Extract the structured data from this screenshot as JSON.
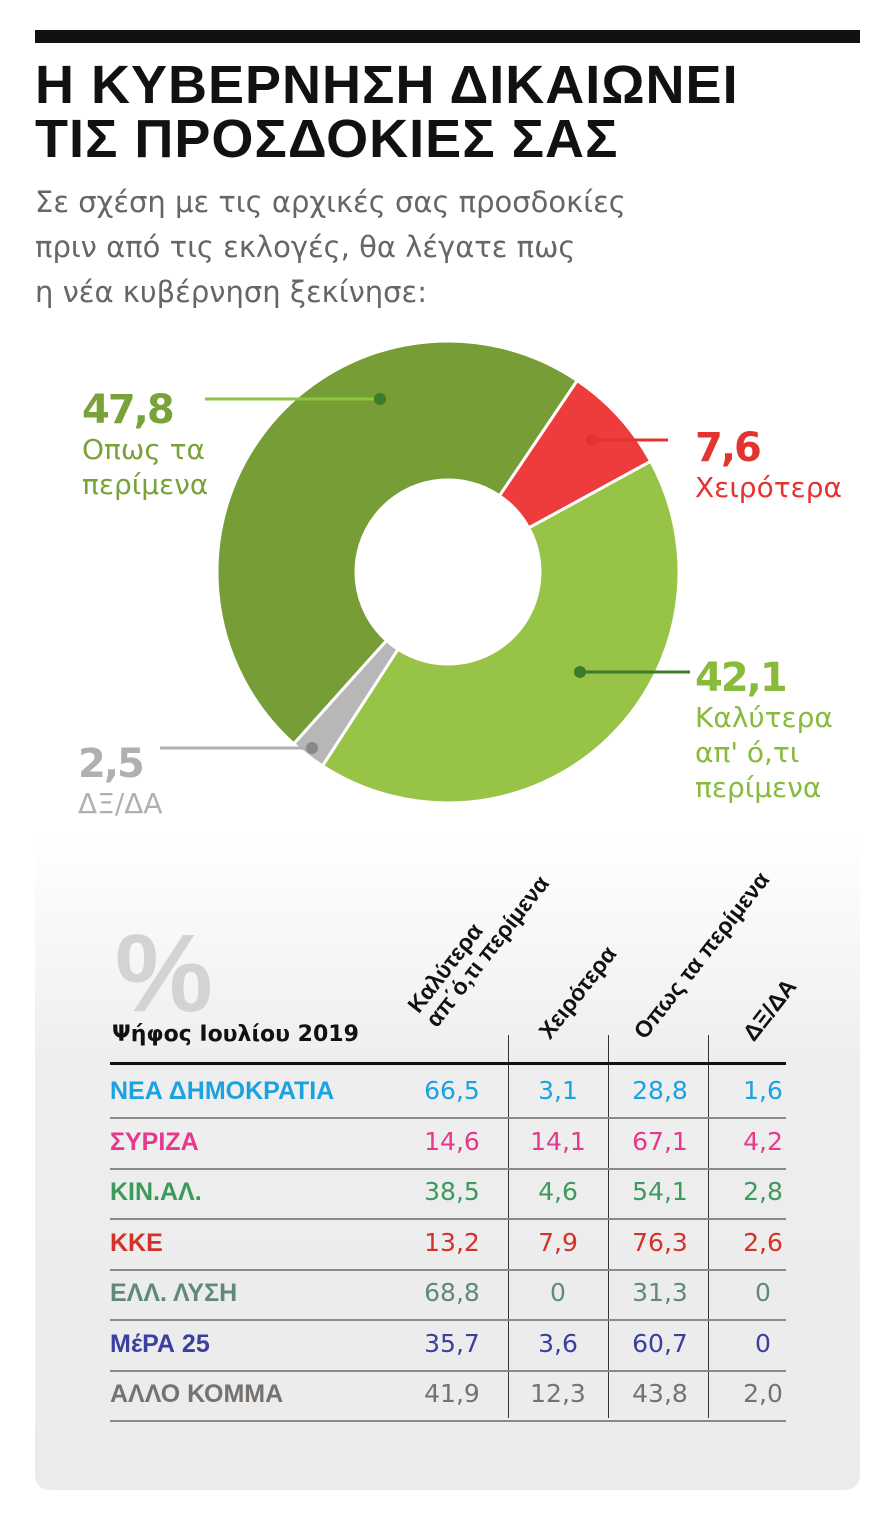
{
  "title_lines": [
    "Η ΚΥΒΕΡΝΗΣΗ ΔΙΚΑΙΩΝΕΙ",
    "ΤΙΣ ΠΡΟΣΔΟΚΙΕΣ ΣΑΣ"
  ],
  "subtitle_lines": [
    "Σε σχέση με τις αρχικές σας προσδοκίες",
    "πριν από τις εκλογές, θα λέγατε πως",
    "η νέα κυβέρνηση ξεκίνησε:"
  ],
  "chart_data": [
    {
      "type": "pie",
      "donut": true,
      "slices": [
        {
          "label": "Χειρότερα",
          "value": 7.6,
          "value_text": "7,6",
          "color": "#ee3b3b",
          "text_color": "#e23430"
        },
        {
          "label": "Καλύτερα απ' ό,τι περίμενα",
          "label_lines": [
            "Καλύτερα",
            "απ' ό,τι",
            "περίμενα"
          ],
          "value": 42.1,
          "value_text": "42,1",
          "color": "#97c447",
          "text_color": "#88bb3c"
        },
        {
          "label": "ΔΞ/ΔΑ",
          "value": 2.5,
          "value_text": "2,5",
          "color": "#b7b7b7",
          "text_color": "#b0b0b0"
        },
        {
          "label": "Οπως τα περίμενα",
          "label_lines": [
            "Οπως τα",
            "περίμενα"
          ],
          "value": 47.8,
          "value_text": "47,8",
          "color": "#769d36",
          "text_color": "#7aa23a"
        }
      ]
    },
    {
      "type": "table",
      "unit_symbol": "%",
      "row_header": "Ψήφος Ιουλίου 2019",
      "columns": [
        {
          "lines": [
            "Καλύτερα",
            "απ΄ό,τι περίμενα"
          ]
        },
        {
          "lines": [
            "Χειρότερα"
          ]
        },
        {
          "lines": [
            "Οπως τα περίμενα"
          ]
        },
        {
          "lines": [
            "ΔΞ/ΔΑ"
          ]
        }
      ],
      "rows": [
        {
          "party": "ΝΕΑ ΔΗΜΟΚΡΑΤΙΑ",
          "color": "#1aa3e0",
          "values": [
            "66,5",
            "3,1",
            "28,8",
            "1,6"
          ]
        },
        {
          "party": "ΣΥΡΙΖΑ",
          "color": "#e6398d",
          "values": [
            "14,6",
            "14,1",
            "67,1",
            "4,2"
          ]
        },
        {
          "party": "ΚΙΝ.ΑΛ.",
          "color": "#3c9a5c",
          "values": [
            "38,5",
            "4,6",
            "54,1",
            "2,8"
          ]
        },
        {
          "party": "ΚΚΕ",
          "color": "#d3322a",
          "values": [
            "13,2",
            "7,9",
            "76,3",
            "2,6"
          ]
        },
        {
          "party": "ΕΛΛ. ΛΥΣΗ",
          "color": "#5f8a78",
          "values": [
            "68,8",
            "0",
            "31,3",
            "0"
          ]
        },
        {
          "party": "ΜέΡΑ 25",
          "color": "#3b3fa0",
          "values": [
            "35,7",
            "3,6",
            "60,7",
            "0"
          ]
        },
        {
          "party": "ΑΛΛΟ ΚΟΜΜΑ",
          "color": "#77726e",
          "values": [
            "41,9",
            "12,3",
            "43,8",
            "2,0"
          ]
        }
      ]
    }
  ]
}
